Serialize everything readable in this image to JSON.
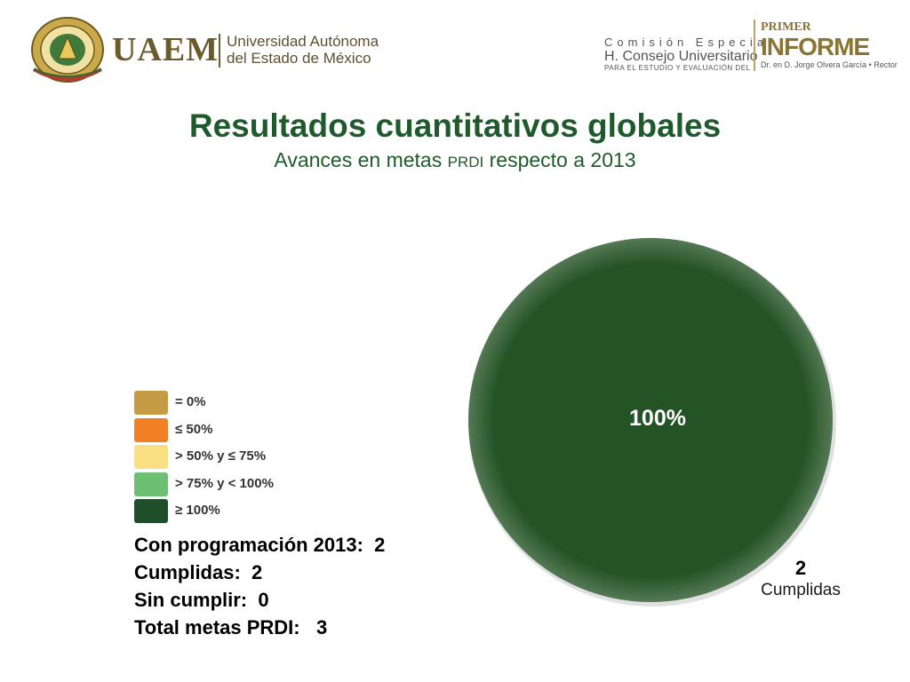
{
  "header": {
    "brand": "UAEM",
    "university_line1": "Universidad Autónoma",
    "university_line2": "del Estado de México",
    "commission_line1": "Comisión Especial",
    "commission_line2": "H. Consejo Universitario",
    "commission_line3": "PARA EL ESTUDIO Y EVALUACIÓN DEL",
    "report_line1": "PRIMER",
    "report_line2": "INFORME",
    "report_line3": "Dr. en D. Jorge Olvera García • Rector"
  },
  "chart_data": {
    "type": "pie",
    "title": "Resultados cuantitativos globales",
    "subtitle_pre": "Avances en metas ",
    "subtitle_sc": "PRDI",
    "subtitle_post": " respecto a 2013",
    "slices": [
      {
        "label": "Cumplidas",
        "value": 2,
        "percent_label": "100%",
        "count_label": "2",
        "color": "#245325"
      }
    ],
    "legend": [
      {
        "label": "= 0%",
        "color": "#c59b46"
      },
      {
        "label": "≤ 50%",
        "color": "#f07f25"
      },
      {
        "label": "> 50% y ≤ 75%",
        "color": "#fbe083"
      },
      {
        "label": "> 75% y < 100%",
        "color": "#6cbf73"
      },
      {
        "label": "≥ 100%",
        "color": "#1f4e2b"
      }
    ]
  },
  "stats": [
    "Con programación 2013:  2",
    "Cumplidas:  2",
    "Sin cumplir:  0",
    "Total metas PRDI:   3"
  ]
}
